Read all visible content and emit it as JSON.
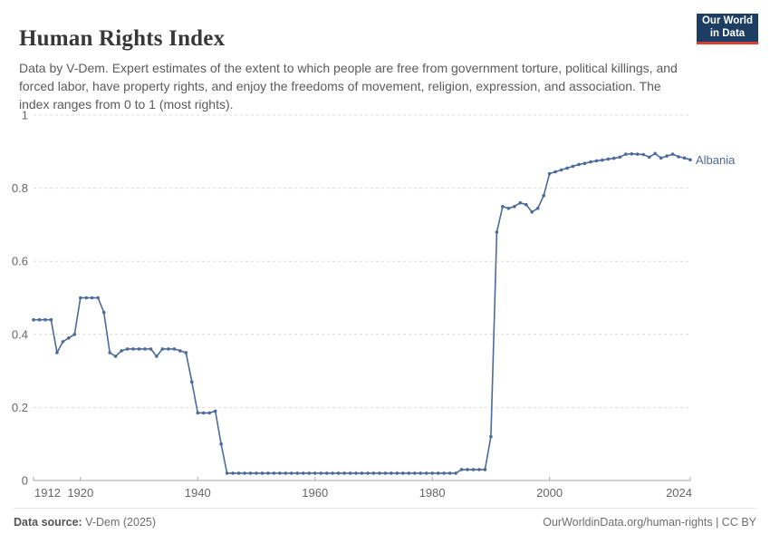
{
  "header": {
    "title": "Human Rights Index",
    "subtitle": "Data by V-Dem. Expert estimates of the extent to which people are free from government torture, political killings, and forced labor, have property rights, and enjoy the freedoms of movement, religion, expression, and association. The index ranges from 0 to 1 (most rights).",
    "logo": {
      "line1": "Our World",
      "line2": "in Data",
      "bg_color": "#1d3d63",
      "accent_color": "#dc3d33"
    }
  },
  "chart_data": {
    "type": "line",
    "title": "Human Rights Index",
    "entity": "Albania",
    "line_color": "#4c6a9c",
    "grid": "horizontal-dashed",
    "legend_position": "end-of-line-label",
    "xlim": [
      1912,
      2024
    ],
    "ylim": [
      0,
      1
    ],
    "xticks": [
      1912,
      1920,
      1940,
      1960,
      1980,
      2000,
      2024
    ],
    "yticks": [
      0,
      0.2,
      0.4,
      0.6,
      0.8,
      1
    ],
    "ytick_labels": [
      "0",
      "0.2",
      "0.4",
      "0.6",
      "0.8",
      "1"
    ],
    "series": [
      {
        "name": "Albania",
        "points": [
          [
            1912,
            0.44
          ],
          [
            1913,
            0.44
          ],
          [
            1914,
            0.44
          ],
          [
            1915,
            0.44
          ],
          [
            1916,
            0.35
          ],
          [
            1917,
            0.38
          ],
          [
            1918,
            0.39
          ],
          [
            1919,
            0.4
          ],
          [
            1920,
            0.5
          ],
          [
            1921,
            0.5
          ],
          [
            1922,
            0.5
          ],
          [
            1923,
            0.5
          ],
          [
            1924,
            0.46
          ],
          [
            1925,
            0.35
          ],
          [
            1926,
            0.34
          ],
          [
            1927,
            0.355
          ],
          [
            1928,
            0.36
          ],
          [
            1929,
            0.36
          ],
          [
            1930,
            0.36
          ],
          [
            1931,
            0.36
          ],
          [
            1932,
            0.36
          ],
          [
            1933,
            0.34
          ],
          [
            1934,
            0.36
          ],
          [
            1935,
            0.36
          ],
          [
            1936,
            0.36
          ],
          [
            1937,
            0.355
          ],
          [
            1938,
            0.35
          ],
          [
            1939,
            0.27
          ],
          [
            1940,
            0.185
          ],
          [
            1941,
            0.185
          ],
          [
            1942,
            0.185
          ],
          [
            1943,
            0.19
          ],
          [
            1944,
            0.1
          ],
          [
            1945,
            0.02
          ],
          [
            1946,
            0.02
          ],
          [
            1947,
            0.02
          ],
          [
            1948,
            0.02
          ],
          [
            1949,
            0.02
          ],
          [
            1950,
            0.02
          ],
          [
            1951,
            0.02
          ],
          [
            1952,
            0.02
          ],
          [
            1953,
            0.02
          ],
          [
            1954,
            0.02
          ],
          [
            1955,
            0.02
          ],
          [
            1956,
            0.02
          ],
          [
            1957,
            0.02
          ],
          [
            1958,
            0.02
          ],
          [
            1959,
            0.02
          ],
          [
            1960,
            0.02
          ],
          [
            1961,
            0.02
          ],
          [
            1962,
            0.02
          ],
          [
            1963,
            0.02
          ],
          [
            1964,
            0.02
          ],
          [
            1965,
            0.02
          ],
          [
            1966,
            0.02
          ],
          [
            1967,
            0.02
          ],
          [
            1968,
            0.02
          ],
          [
            1969,
            0.02
          ],
          [
            1970,
            0.02
          ],
          [
            1971,
            0.02
          ],
          [
            1972,
            0.02
          ],
          [
            1973,
            0.02
          ],
          [
            1974,
            0.02
          ],
          [
            1975,
            0.02
          ],
          [
            1976,
            0.02
          ],
          [
            1977,
            0.02
          ],
          [
            1978,
            0.02
          ],
          [
            1979,
            0.02
          ],
          [
            1980,
            0.02
          ],
          [
            1981,
            0.02
          ],
          [
            1982,
            0.02
          ],
          [
            1983,
            0.02
          ],
          [
            1984,
            0.02
          ],
          [
            1985,
            0.03
          ],
          [
            1986,
            0.03
          ],
          [
            1987,
            0.03
          ],
          [
            1988,
            0.03
          ],
          [
            1989,
            0.03
          ],
          [
            1990,
            0.12
          ],
          [
            1991,
            0.68
          ],
          [
            1992,
            0.75
          ],
          [
            1993,
            0.745
          ],
          [
            1994,
            0.75
          ],
          [
            1995,
            0.76
          ],
          [
            1996,
            0.755
          ],
          [
            1997,
            0.735
          ],
          [
            1998,
            0.745
          ],
          [
            1999,
            0.78
          ],
          [
            2000,
            0.84
          ],
          [
            2001,
            0.845
          ],
          [
            2002,
            0.85
          ],
          [
            2003,
            0.855
          ],
          [
            2004,
            0.86
          ],
          [
            2005,
            0.865
          ],
          [
            2006,
            0.868
          ],
          [
            2007,
            0.872
          ],
          [
            2008,
            0.875
          ],
          [
            2009,
            0.877
          ],
          [
            2010,
            0.88
          ],
          [
            2011,
            0.882
          ],
          [
            2012,
            0.885
          ],
          [
            2013,
            0.893
          ],
          [
            2014,
            0.894
          ],
          [
            2015,
            0.893
          ],
          [
            2016,
            0.892
          ],
          [
            2017,
            0.885
          ],
          [
            2018,
            0.895
          ],
          [
            2019,
            0.883
          ],
          [
            2020,
            0.888
          ],
          [
            2021,
            0.893
          ],
          [
            2022,
            0.886
          ],
          [
            2023,
            0.883
          ],
          [
            2024,
            0.878
          ]
        ]
      }
    ]
  },
  "footer": {
    "source_label": "Data source:",
    "source_value": " V-Dem (2025)",
    "right_text": "OurWorldinData.org/human-rights | CC BY"
  }
}
